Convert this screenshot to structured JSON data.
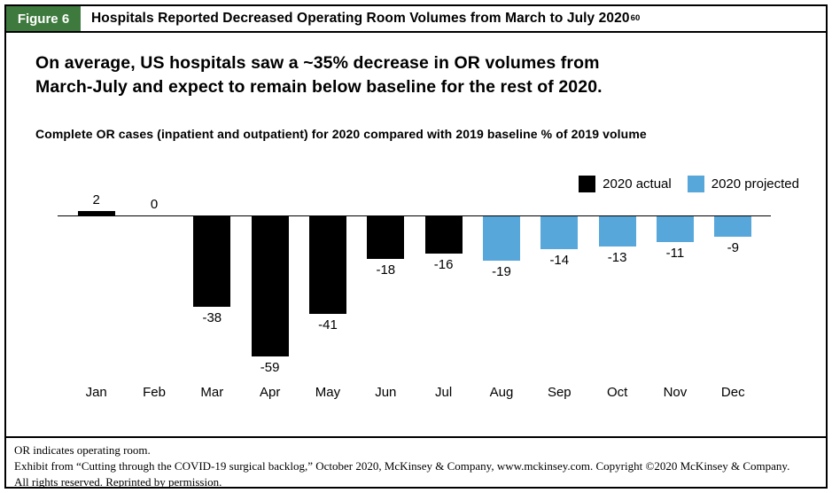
{
  "colors": {
    "figure_label_bg": "#3e7a3e",
    "actual_bar": "#000000",
    "projected_bar": "#58a7da",
    "border": "#000000",
    "text": "#000000"
  },
  "figure": {
    "label": "Figure 6",
    "title": "Hospitals Reported Decreased Operating Room Volumes from March to July 2020",
    "title_superscript": "60"
  },
  "headline": {
    "lines": [
      "On average, US hospitals saw a ~35% decrease in OR volumes from",
      "March-July and expect to remain below baseline for the rest of 2020."
    ]
  },
  "subtitle": "Complete OR cases (inpatient and outpatient) for 2020 compared with 2019 baseline % of 2019 volume",
  "legend": [
    {
      "label": "2020 actual",
      "color": "#000000"
    },
    {
      "label": "2020 projected",
      "color": "#58a7da"
    }
  ],
  "chart_data": {
    "type": "bar",
    "categories": [
      "Jan",
      "Feb",
      "Mar",
      "Apr",
      "May",
      "Jun",
      "Jul",
      "Aug",
      "Sep",
      "Oct",
      "Nov",
      "Dec"
    ],
    "series": [
      {
        "name": "2020 actual",
        "color": "#000000",
        "values": [
          2,
          0,
          -38,
          -59,
          -41,
          -18,
          -16,
          null,
          null,
          null,
          null,
          null
        ]
      },
      {
        "name": "2020 projected",
        "color": "#58a7da",
        "values": [
          null,
          null,
          null,
          null,
          null,
          null,
          null,
          -19,
          -14,
          -13,
          -11,
          -9
        ]
      }
    ],
    "baseline": 0,
    "ylim": [
      -65,
      8
    ],
    "grid": false,
    "value_labels": true,
    "legend_position": "top-right",
    "title": "Complete OR cases (inpatient and outpatient) for 2020 compared with 2019 baseline % of 2019 volume",
    "xlabel": "",
    "ylabel": ""
  },
  "footer": {
    "lines": [
      "OR indicates operating room.",
      "Exhibit from “Cutting through the COVID-19 surgical backlog,” October 2020, McKinsey & Company, www.mckinsey.com. Copyright ©2020 McKinsey & Company.",
      "All rights reserved. Reprinted by permission."
    ]
  }
}
